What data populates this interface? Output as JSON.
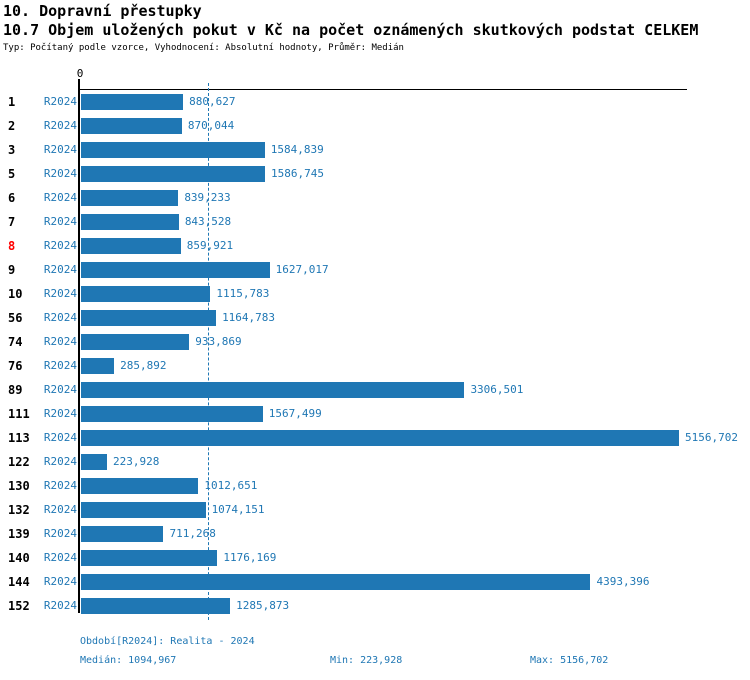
{
  "header": {
    "title": "10. Dopravní přestupky",
    "subtitle": "10.7 Objem uložených pokut v Kč na počet oznámených skutkových podstat CELKEM",
    "meta": "Typ: Počítaný podle vzorce, Vyhodnocení: Absolutní hodnoty, Průměr: Medián"
  },
  "chart_data": {
    "type": "bar",
    "orientation": "horizontal",
    "title": "10.7 Objem uložených pokut v Kč na počet oznámených skutkových podstat CELKEM",
    "axis_zero_label": "0",
    "series_label": "R2024",
    "categories": [
      "1",
      "2",
      "3",
      "5",
      "6",
      "7",
      "8",
      "9",
      "10",
      "56",
      "74",
      "76",
      "89",
      "111",
      "113",
      "122",
      "130",
      "132",
      "139",
      "140",
      "144",
      "152"
    ],
    "values": [
      880.627,
      870.044,
      1584.839,
      1586.745,
      839.233,
      843.528,
      859.921,
      1627.017,
      1115.783,
      1164.783,
      933.869,
      285.892,
      3306.501,
      1567.499,
      5156.702,
      223.928,
      1012.651,
      1074.151,
      711.268,
      1176.169,
      4393.396,
      1285.873
    ],
    "value_labels": [
      "880,627",
      "870,044",
      "1584,839",
      "1586,745",
      "839,233",
      "843,528",
      "859,921",
      "1627,017",
      "1115,783",
      "1164,783",
      "933,869",
      "285,892",
      "3306,501",
      "1567,499",
      "5156,702",
      "223,928",
      "1012,651",
      "1074,151",
      "711,268",
      "1176,169",
      "4393,396",
      "1285,873"
    ],
    "highlighted_category": "8",
    "median_value": 1094.967,
    "xlim": [
      0,
      5156.702
    ],
    "grid": false,
    "legend_position": "none"
  },
  "footer": {
    "period": "Období[R2024]: Realita - 2024",
    "median": "Medián: 1094,967",
    "min": "Min: 223,928",
    "max": "Max: 5156,702"
  },
  "colors": {
    "bar": "#1f77b4",
    "value_text": "#1f77b4",
    "series_text": "#1f77b4",
    "median_line": "#1f77b4",
    "row_number": "#000000",
    "row_number_highlight": "#ff0000",
    "axis": "#000000"
  }
}
